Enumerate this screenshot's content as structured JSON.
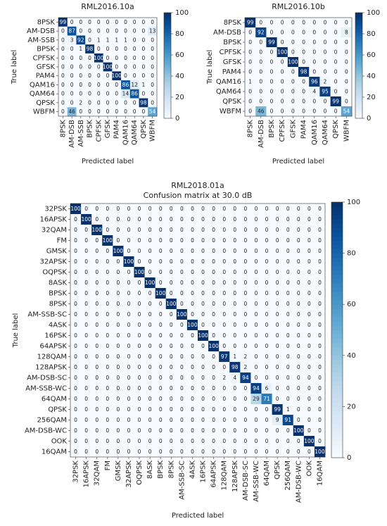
{
  "chart_data": [
    {
      "type": "heatmap",
      "title": "RML2016.10a",
      "x_label": "Predicted label",
      "y_label": "True label",
      "colormap": "Blues",
      "categories": [
        "8PSK",
        "AM-DSB",
        "AM-SSB",
        "BPSK",
        "CPFSK",
        "GFSK",
        "PAM4",
        "QAM16",
        "QAM64",
        "QPSK",
        "WBFM"
      ],
      "values": [
        [
          99,
          0,
          0,
          0,
          0,
          0,
          0,
          0,
          0,
          0,
          0
        ],
        [
          0,
          87,
          0,
          0,
          0,
          0,
          0,
          0,
          0,
          0,
          13
        ],
        [
          0,
          3,
          92,
          0,
          1,
          1,
          1,
          1,
          0,
          0,
          0
        ],
        [
          0,
          0,
          1,
          98,
          0,
          0,
          0,
          0,
          0,
          0,
          0
        ],
        [
          0,
          0,
          0,
          0,
          100,
          0,
          0,
          0,
          0,
          0,
          0
        ],
        [
          0,
          0,
          0,
          0,
          0,
          100,
          0,
          0,
          0,
          0,
          0
        ],
        [
          0,
          0,
          0,
          0,
          0,
          0,
          100,
          0,
          0,
          0,
          0
        ],
        [
          0,
          0,
          0,
          0,
          0,
          0,
          0,
          86,
          12,
          1,
          0
        ],
        [
          0,
          0,
          0,
          0,
          0,
          0,
          0,
          14,
          86,
          0,
          0
        ],
        [
          0,
          0,
          2,
          0,
          0,
          0,
          0,
          0,
          0,
          98,
          0
        ],
        [
          0,
          46,
          0,
          0,
          0,
          0,
          0,
          0,
          0,
          0,
          54
        ]
      ],
      "zlim": [
        0,
        100
      ],
      "zticks": [
        0,
        20,
        40,
        60,
        80,
        100
      ]
    },
    {
      "type": "heatmap",
      "title": "RML2016.10b",
      "x_label": "Predicted label",
      "y_label": "True label",
      "colormap": "Blues",
      "categories": [
        "8PSK",
        "AM-DSB",
        "BPSK",
        "CPFSK",
        "GFSK",
        "PAM4",
        "QAM16",
        "QAM64",
        "QPSK",
        "WBFM"
      ],
      "values": [
        [
          99,
          0,
          0,
          0,
          0,
          0,
          0,
          0,
          0,
          0
        ],
        [
          0,
          92,
          0,
          0,
          0,
          0,
          0,
          0,
          0,
          8
        ],
        [
          0,
          0,
          99,
          0,
          0,
          0,
          0,
          0,
          0,
          0
        ],
        [
          0,
          0,
          0,
          100,
          0,
          0,
          0,
          0,
          0,
          0
        ],
        [
          0,
          0,
          0,
          0,
          100,
          0,
          0,
          0,
          0,
          0
        ],
        [
          0,
          0,
          0,
          0,
          0,
          98,
          0,
          0,
          0,
          0
        ],
        [
          1,
          0,
          0,
          0,
          0,
          0,
          96,
          2,
          0,
          0
        ],
        [
          0,
          0,
          0,
          0,
          0,
          0,
          4,
          95,
          0,
          0
        ],
        [
          0,
          0,
          0,
          0,
          0,
          0,
          0,
          0,
          99,
          0
        ],
        [
          0,
          46,
          0,
          0,
          0,
          0,
          0,
          0,
          0,
          54
        ]
      ],
      "zlim": [
        0,
        100
      ],
      "zticks": [
        0,
        20,
        40,
        60,
        80,
        100
      ]
    },
    {
      "type": "heatmap",
      "title": "RML2018.01a",
      "subtitle": "Confusion matrix at 30.0 dB",
      "x_label": "Predicted label",
      "y_label": "True label",
      "colormap": "Blues",
      "categories": [
        "32PSK",
        "16APSK",
        "32QAM",
        "FM",
        "GMSK",
        "32APSK",
        "OQPSK",
        "8ASK",
        "BPSK",
        "8PSK",
        "AM-SSB-SC",
        "4ASK",
        "16PSK",
        "64APSK",
        "128QAM",
        "128APSK",
        "AM-DSB-SC",
        "AM-SSB-WC",
        "64QAM",
        "QPSK",
        "256QAM",
        "AM-DSB-WC",
        "OOK",
        "16QAM"
      ],
      "values": [
        [
          100,
          0,
          0,
          0,
          0,
          0,
          0,
          0,
          0,
          0,
          0,
          0,
          0,
          0,
          0,
          0,
          0,
          0,
          0,
          0,
          0,
          0,
          0,
          0
        ],
        [
          0,
          100,
          0,
          0,
          0,
          0,
          0,
          0,
          0,
          0,
          0,
          0,
          0,
          0,
          0,
          0,
          0,
          0,
          0,
          0,
          0,
          0,
          0,
          0
        ],
        [
          0,
          0,
          100,
          0,
          0,
          0,
          0,
          0,
          0,
          0,
          0,
          0,
          0,
          0,
          0,
          0,
          0,
          0,
          0,
          0,
          0,
          0,
          0,
          0
        ],
        [
          0,
          0,
          0,
          100,
          0,
          0,
          0,
          0,
          0,
          0,
          0,
          0,
          0,
          0,
          0,
          0,
          0,
          0,
          0,
          0,
          0,
          0,
          0,
          0
        ],
        [
          0,
          0,
          0,
          0,
          100,
          0,
          0,
          0,
          0,
          0,
          0,
          0,
          0,
          0,
          0,
          0,
          0,
          0,
          0,
          0,
          0,
          0,
          0,
          0
        ],
        [
          0,
          0,
          0,
          0,
          0,
          100,
          0,
          0,
          0,
          0,
          0,
          0,
          0,
          0,
          0,
          0,
          0,
          0,
          0,
          0,
          0,
          0,
          0,
          0
        ],
        [
          0,
          0,
          0,
          0,
          0,
          0,
          100,
          0,
          0,
          0,
          0,
          0,
          0,
          0,
          0,
          0,
          0,
          0,
          0,
          0,
          0,
          0,
          0,
          0
        ],
        [
          0,
          0,
          0,
          0,
          0,
          0,
          0,
          100,
          0,
          0,
          0,
          0,
          0,
          0,
          0,
          0,
          0,
          0,
          0,
          0,
          0,
          0,
          0,
          0
        ],
        [
          0,
          0,
          0,
          0,
          0,
          0,
          0,
          0,
          100,
          0,
          0,
          0,
          0,
          0,
          0,
          0,
          0,
          0,
          0,
          0,
          0,
          0,
          0,
          0
        ],
        [
          0,
          0,
          0,
          0,
          0,
          0,
          0,
          0,
          0,
          100,
          0,
          0,
          0,
          0,
          0,
          0,
          0,
          0,
          0,
          0,
          0,
          0,
          0,
          0
        ],
        [
          0,
          0,
          0,
          0,
          0,
          0,
          0,
          0,
          0,
          0,
          100,
          0,
          0,
          0,
          0,
          0,
          0,
          0,
          0,
          0,
          0,
          0,
          0,
          0
        ],
        [
          0,
          0,
          0,
          0,
          0,
          0,
          0,
          0,
          0,
          0,
          0,
          100,
          0,
          0,
          0,
          0,
          0,
          0,
          0,
          0,
          0,
          0,
          0,
          0
        ],
        [
          0,
          0,
          0,
          0,
          0,
          0,
          0,
          0,
          0,
          0,
          0,
          0,
          100,
          0,
          0,
          0,
          0,
          0,
          0,
          0,
          0,
          0,
          0,
          0
        ],
        [
          0,
          0,
          0,
          0,
          0,
          0,
          0,
          0,
          0,
          0,
          0,
          0,
          0,
          100,
          0,
          0,
          0,
          0,
          0,
          0,
          0,
          0,
          0,
          0
        ],
        [
          0,
          0,
          0,
          0,
          0,
          0,
          0,
          0,
          0,
          0,
          0,
          0,
          0,
          0,
          97,
          1,
          2,
          0,
          0,
          0,
          0,
          0,
          0,
          0
        ],
        [
          0,
          0,
          0,
          0,
          0,
          0,
          0,
          0,
          0,
          0,
          0,
          0,
          0,
          0,
          0,
          98,
          2,
          0,
          0,
          0,
          0,
          0,
          0,
          0
        ],
        [
          0,
          0,
          0,
          0,
          0,
          0,
          0,
          0,
          0,
          0,
          0,
          0,
          0,
          0,
          2,
          4,
          94,
          0,
          0,
          0,
          0,
          0,
          0,
          0
        ],
        [
          0,
          0,
          0,
          0,
          0,
          0,
          0,
          0,
          0,
          0,
          0,
          0,
          0,
          0,
          0,
          0,
          0,
          94,
          6,
          0,
          0,
          0,
          0,
          0
        ],
        [
          0,
          0,
          0,
          0,
          0,
          0,
          0,
          0,
          0,
          0,
          0,
          0,
          0,
          0,
          0,
          0,
          0,
          29,
          71,
          0,
          0,
          0,
          0,
          0
        ],
        [
          0,
          0,
          0,
          0,
          0,
          0,
          0,
          0,
          0,
          0,
          0,
          0,
          0,
          0,
          0,
          0,
          0,
          0,
          0,
          99,
          1,
          0,
          0,
          0
        ],
        [
          0,
          0,
          0,
          0,
          0,
          0,
          0,
          0,
          0,
          0,
          0,
          0,
          0,
          0,
          0,
          0,
          0,
          0,
          0,
          9,
          91,
          0,
          0,
          0
        ],
        [
          0,
          0,
          0,
          0,
          0,
          0,
          0,
          0,
          0,
          0,
          0,
          0,
          0,
          0,
          0,
          0,
          0,
          0,
          0,
          0,
          0,
          100,
          0,
          0
        ],
        [
          0,
          0,
          0,
          0,
          0,
          0,
          0,
          0,
          0,
          0,
          0,
          0,
          0,
          0,
          0,
          0,
          0,
          0,
          0,
          0,
          0,
          0,
          100,
          0
        ],
        [
          0,
          0,
          0,
          0,
          0,
          0,
          0,
          0,
          0,
          0,
          0,
          0,
          0,
          0,
          0,
          0,
          0,
          0,
          0,
          0,
          0,
          0,
          0,
          100
        ]
      ],
      "zlim": [
        0,
        100
      ],
      "zticks": [
        0,
        20,
        40,
        60,
        80,
        100
      ]
    }
  ]
}
